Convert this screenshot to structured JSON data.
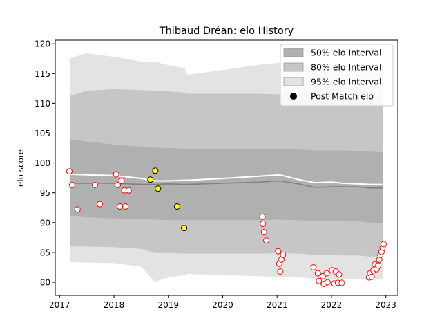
{
  "chart_data": {
    "type": "line",
    "title": "Thibaud Dréan: elo History",
    "xlabel": "",
    "ylabel": "elo score",
    "xlim": [
      2016.92,
      2023.22
    ],
    "ylim": [
      77.8,
      120.6
    ],
    "xticks": [
      2017,
      2018,
      2019,
      2020,
      2021,
      2022,
      2023
    ],
    "yticks": [
      80,
      85,
      90,
      95,
      100,
      105,
      110,
      115,
      120
    ],
    "legend_position": "upper right",
    "grid": false,
    "colors": {
      "band50": "#b0b0b0",
      "band80": "#c6c6c6",
      "band95": "#e3e3e3",
      "mean_line": "#808080",
      "fitted_line": "#ffffff",
      "past_marker_edge": "#ff0000",
      "highlight_marker_fill": "#ffff00",
      "legend_dot": "#000000"
    },
    "legend": [
      {
        "label": "50% elo Interval",
        "kind": "band50"
      },
      {
        "label": "80% elo Interval",
        "kind": "band80"
      },
      {
        "label": "95% elo Interval",
        "kind": "band95"
      },
      {
        "label": "Post Match elo",
        "kind": "dot"
      }
    ],
    "bands": {
      "x": [
        2017.2,
        2017.5,
        2018.0,
        2018.5,
        2018.75,
        2019.0,
        2019.3,
        2019.35,
        2020.0,
        2020.7,
        2021.05,
        2021.4,
        2021.7,
        2022.0,
        2022.2,
        2022.5,
        2022.7,
        2022.95
      ],
      "lo95": [
        83.4,
        83.3,
        83.2,
        82.6,
        80.1,
        80.8,
        81.2,
        81.4,
        81.2,
        81.0,
        80.9,
        80.8,
        80.6,
        80.5,
        80.5,
        80.5,
        80.5,
        80.6
      ],
      "lo80": [
        86.0,
        86.0,
        85.9,
        85.6,
        84.9,
        84.9,
        84.8,
        84.8,
        84.8,
        84.8,
        84.9,
        84.8,
        84.6,
        84.6,
        84.5,
        84.5,
        84.3,
        84.4
      ],
      "lo50": [
        91.1,
        90.9,
        90.7,
        90.6,
        90.5,
        90.4,
        90.4,
        90.4,
        90.4,
        90.4,
        90.5,
        90.4,
        90.3,
        90.3,
        90.2,
        90.2,
        90.0,
        89.9
      ],
      "hi50": [
        104.0,
        103.6,
        103.1,
        102.7,
        102.6,
        102.5,
        102.4,
        102.4,
        102.3,
        102.3,
        102.4,
        102.3,
        102.1,
        102.1,
        102.1,
        102.0,
        101.9,
        101.8
      ],
      "hi80": [
        111.3,
        112.1,
        112.4,
        112.2,
        112.1,
        112.0,
        111.8,
        111.6,
        111.6,
        111.6,
        111.5,
        111.5,
        111.4,
        111.3,
        111.2,
        111.1,
        111.0,
        111.0
      ],
      "hi95": [
        117.6,
        118.4,
        117.8,
        117.0,
        117.0,
        116.4,
        115.9,
        114.8,
        115.6,
        116.5,
        116.8,
        116.5,
        116.2,
        116.0,
        115.8,
        115.6,
        115.6,
        115.5
      ],
      "mean": [
        96.6,
        96.6,
        96.6,
        96.4,
        96.4,
        96.5,
        96.4,
        96.4,
        96.6,
        96.8,
        97.0,
        96.5,
        95.9,
        96.0,
        96.0,
        96.0,
        95.8,
        95.8
      ],
      "fitted": [
        98.1,
        98.0,
        97.9,
        97.4,
        97.0,
        97.0,
        97.1,
        97.1,
        97.4,
        97.8,
        98.0,
        97.2,
        96.7,
        96.8,
        96.6,
        96.5,
        96.4,
        96.4
      ]
    },
    "past_matches": [
      {
        "x": 2017.18,
        "y": 98.6
      },
      {
        "x": 2017.23,
        "y": 96.3
      },
      {
        "x": 2017.33,
        "y": 92.2
      },
      {
        "x": 2017.65,
        "y": 96.3
      },
      {
        "x": 2017.74,
        "y": 93.1
      },
      {
        "x": 2018.04,
        "y": 98.1
      },
      {
        "x": 2018.07,
        "y": 96.3
      },
      {
        "x": 2018.11,
        "y": 92.7
      },
      {
        "x": 2018.14,
        "y": 97.0
      },
      {
        "x": 2018.19,
        "y": 95.4
      },
      {
        "x": 2018.21,
        "y": 92.7
      },
      {
        "x": 2018.27,
        "y": 95.4
      },
      {
        "x": 2020.73,
        "y": 91.0
      },
      {
        "x": 2020.74,
        "y": 89.8
      },
      {
        "x": 2020.76,
        "y": 88.4
      },
      {
        "x": 2020.8,
        "y": 87.0
      },
      {
        "x": 2021.02,
        "y": 85.2
      },
      {
        "x": 2021.04,
        "y": 83.1
      },
      {
        "x": 2021.06,
        "y": 81.8
      },
      {
        "x": 2021.08,
        "y": 83.8
      },
      {
        "x": 2021.11,
        "y": 84.6
      },
      {
        "x": 2021.67,
        "y": 82.5
      },
      {
        "x": 2021.75,
        "y": 81.5
      },
      {
        "x": 2021.77,
        "y": 80.2
      },
      {
        "x": 2021.84,
        "y": 81.0
      },
      {
        "x": 2021.86,
        "y": 79.7
      },
      {
        "x": 2021.91,
        "y": 81.5
      },
      {
        "x": 2021.93,
        "y": 80.0
      },
      {
        "x": 2022.01,
        "y": 82.0
      },
      {
        "x": 2022.05,
        "y": 79.8
      },
      {
        "x": 2022.08,
        "y": 81.8
      },
      {
        "x": 2022.12,
        "y": 79.9
      },
      {
        "x": 2022.14,
        "y": 81.3
      },
      {
        "x": 2022.19,
        "y": 79.9
      },
      {
        "x": 2022.69,
        "y": 80.8
      },
      {
        "x": 2022.71,
        "y": 81.5
      },
      {
        "x": 2022.74,
        "y": 80.9
      },
      {
        "x": 2022.77,
        "y": 82.0
      },
      {
        "x": 2022.8,
        "y": 83.0
      },
      {
        "x": 2022.83,
        "y": 82.2
      },
      {
        "x": 2022.86,
        "y": 82.8
      },
      {
        "x": 2022.88,
        "y": 83.8
      },
      {
        "x": 2022.9,
        "y": 84.6
      },
      {
        "x": 2022.92,
        "y": 85.1
      },
      {
        "x": 2022.94,
        "y": 85.8
      },
      {
        "x": 2022.96,
        "y": 86.4
      }
    ],
    "highlight_matches": [
      {
        "x": 2018.67,
        "y": 97.2
      },
      {
        "x": 2018.76,
        "y": 98.7
      },
      {
        "x": 2018.81,
        "y": 95.7
      },
      {
        "x": 2019.16,
        "y": 92.7
      },
      {
        "x": 2019.29,
        "y": 89.1
      }
    ]
  }
}
